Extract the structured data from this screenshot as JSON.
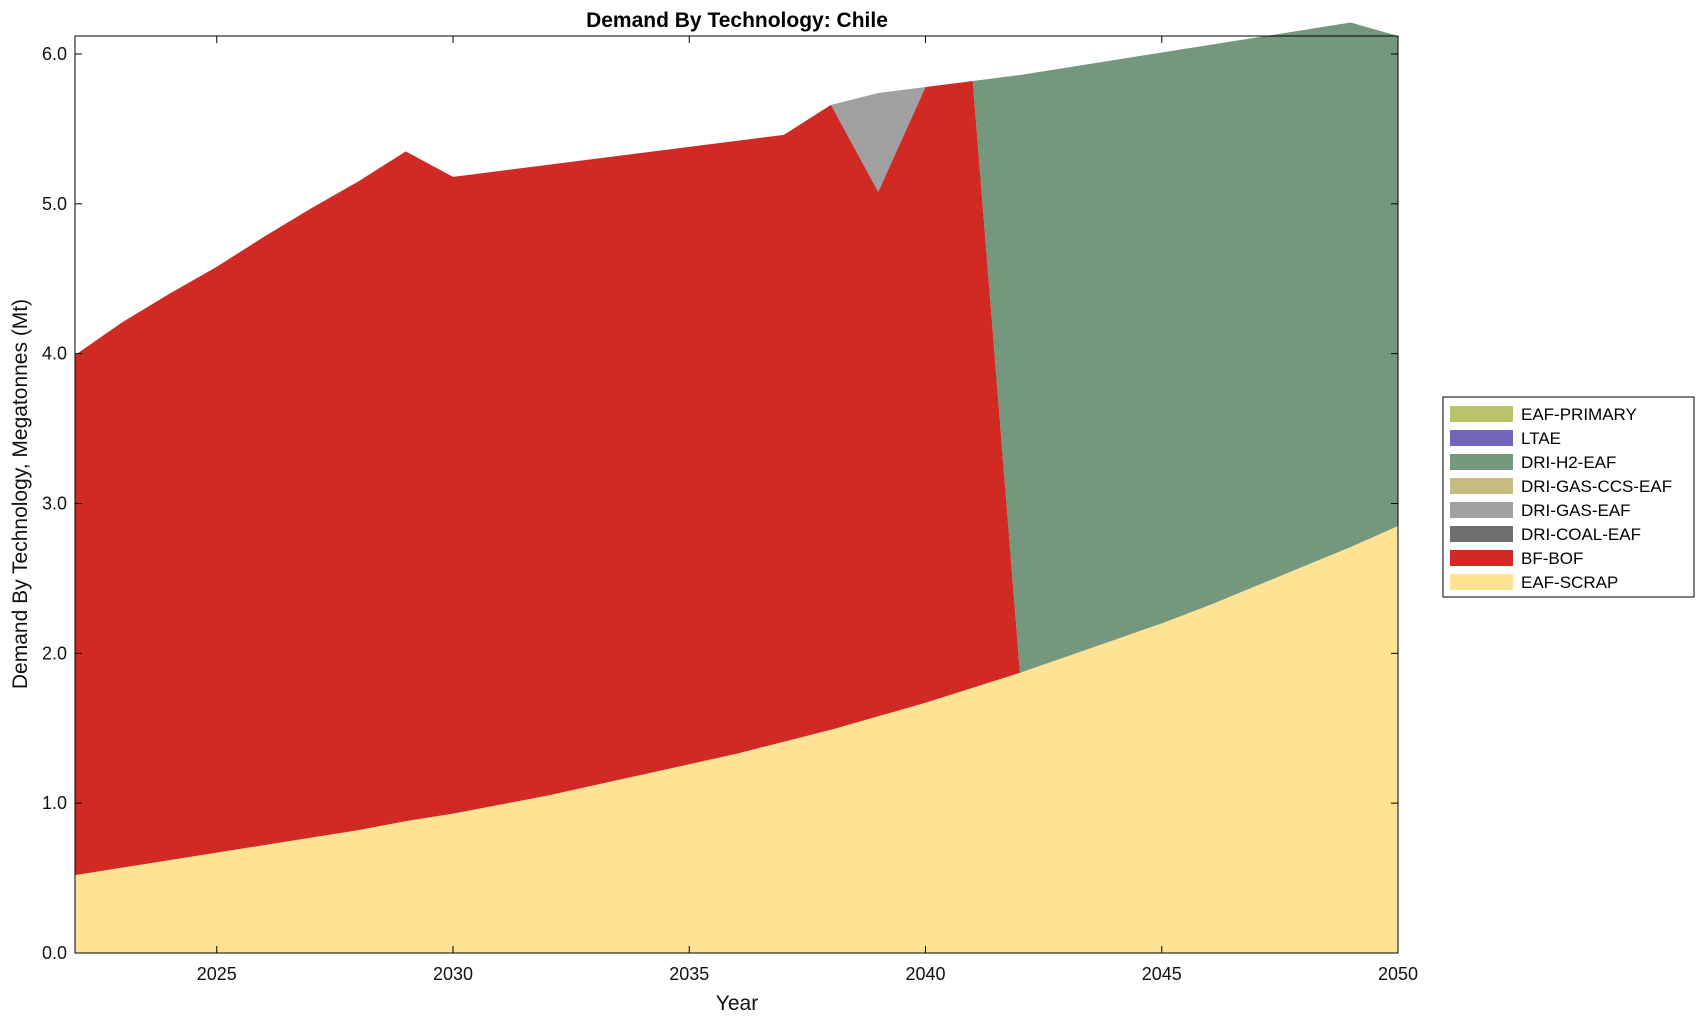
{
  "chart_data": {
    "type": "area",
    "title": "Demand By Technology: Chile",
    "xlabel": "Year",
    "ylabel": "Demand By Technology, Megatonnes (Mt)",
    "xlim": [
      2022,
      2050
    ],
    "ylim": [
      0,
      6.12
    ],
    "xticks": [
      2025,
      2030,
      2035,
      2040,
      2045,
      2050
    ],
    "yticks": [
      "0.0",
      "1.0",
      "2.0",
      "3.0",
      "4.0",
      "5.0",
      "6.0"
    ],
    "legend_position": "right",
    "x": [
      2022,
      2023,
      2024,
      2025,
      2026,
      2027,
      2028,
      2029,
      2030,
      2031,
      2032,
      2033,
      2034,
      2035,
      2036,
      2037,
      2038,
      2039,
      2040,
      2041,
      2042,
      2043,
      2044,
      2045,
      2046,
      2047,
      2048,
      2049,
      2050
    ],
    "series": [
      {
        "name": "EAF-SCRAP",
        "color": "#FDE393",
        "values": [
          0.52,
          0.57,
          0.62,
          0.67,
          0.72,
          0.77,
          0.82,
          0.88,
          0.93,
          0.99,
          1.05,
          1.12,
          1.19,
          1.26,
          1.33,
          1.41,
          1.49,
          1.58,
          1.67,
          1.77,
          1.87,
          1.98,
          2.09,
          2.2,
          2.32,
          2.45,
          2.58,
          2.71,
          2.85
        ]
      },
      {
        "name": "BF-BOF",
        "color": "#D12A24",
        "values": [
          3.47,
          3.64,
          3.78,
          3.91,
          4.06,
          4.2,
          4.33,
          4.47,
          4.25,
          4.23,
          4.21,
          4.18,
          4.15,
          4.12,
          4.09,
          4.05,
          4.17,
          3.5,
          4.11,
          4.05,
          0,
          0,
          0,
          0,
          0,
          0,
          0,
          0,
          0
        ]
      },
      {
        "name": "DRI-COAL-EAF",
        "color": "#6F6F6F",
        "values": [
          0,
          0,
          0,
          0,
          0,
          0,
          0,
          0,
          0,
          0,
          0,
          0,
          0,
          0,
          0,
          0,
          0,
          0,
          0,
          0,
          0,
          0,
          0,
          0,
          0,
          0,
          0,
          0,
          0
        ]
      },
      {
        "name": "DRI-GAS-EAF",
        "color": "#A0A0A0",
        "values": [
          0,
          0,
          0,
          0,
          0,
          0,
          0,
          0,
          0,
          0,
          0,
          0,
          0,
          0,
          0,
          0,
          0,
          0.66,
          0,
          0,
          0,
          0,
          0,
          0,
          0,
          0,
          0,
          0,
          0
        ]
      },
      {
        "name": "DRI-GAS-CCS-EAF",
        "color": "#C6BC82",
        "values": [
          0,
          0,
          0,
          0,
          0,
          0,
          0,
          0,
          0,
          0,
          0,
          0,
          0,
          0,
          0,
          0,
          0,
          0,
          0,
          0,
          0,
          0,
          0,
          0,
          0,
          0,
          0,
          0,
          0
        ]
      },
      {
        "name": "DRI-H2-EAF",
        "color": "#75977E",
        "values": [
          0,
          0,
          0,
          0,
          0,
          0,
          0,
          0,
          0,
          0,
          0,
          0,
          0,
          0,
          0,
          0,
          0,
          0,
          0,
          0,
          3.99,
          3.93,
          3.87,
          3.81,
          3.74,
          3.66,
          3.58,
          3.5,
          3.27
        ]
      },
      {
        "name": "LTAE",
        "color": "#7165BA",
        "values": [
          0,
          0,
          0,
          0,
          0,
          0,
          0,
          0,
          0,
          0,
          0,
          0,
          0,
          0,
          0,
          0,
          0,
          0,
          0,
          0,
          0,
          0,
          0,
          0,
          0,
          0,
          0,
          0,
          0
        ]
      },
      {
        "name": "EAF-PRIMARY",
        "color": "#BAC26A",
        "values": [
          0,
          0,
          0,
          0,
          0,
          0,
          0,
          0,
          0,
          0,
          0,
          0,
          0,
          0,
          0,
          0,
          0,
          0,
          0,
          0,
          0,
          0,
          0,
          0,
          0,
          0,
          0,
          0,
          0
        ]
      }
    ],
    "legend_order": [
      "EAF-PRIMARY",
      "LTAE",
      "DRI-H2-EAF",
      "DRI-GAS-CCS-EAF",
      "DRI-GAS-EAF",
      "DRI-COAL-EAF",
      "BF-BOF",
      "EAF-SCRAP"
    ]
  }
}
